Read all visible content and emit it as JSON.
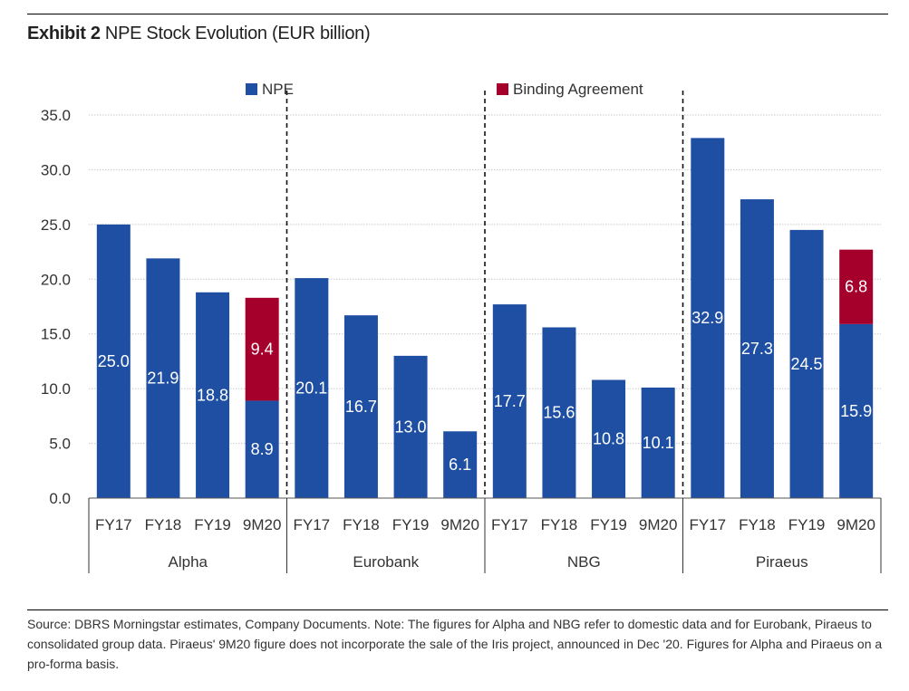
{
  "title": {
    "bold": "Exhibit 2",
    "rest": "NPE Stock Evolution (EUR billion)"
  },
  "chart_data": {
    "type": "bar",
    "stacked": true,
    "title": "Exhibit 2 NPE Stock Evolution (EUR billion)",
    "xlabel": "",
    "ylabel": "",
    "ylim": [
      0,
      35
    ],
    "yticks": [
      "0.0",
      "5.0",
      "10.0",
      "15.0",
      "20.0",
      "25.0",
      "30.0",
      "35.0"
    ],
    "grid": true,
    "legend_position": "top",
    "groups": [
      {
        "name": "Alpha",
        "categories": [
          "FY17",
          "FY18",
          "FY19",
          "9M20"
        ]
      },
      {
        "name": "Eurobank",
        "categories": [
          "FY17",
          "FY18",
          "FY19",
          "9M20"
        ]
      },
      {
        "name": "NBG",
        "categories": [
          "FY17",
          "FY18",
          "FY19",
          "9M20"
        ]
      },
      {
        "name": "Piraeus",
        "categories": [
          "FY17",
          "FY18",
          "FY19",
          "9M20"
        ]
      }
    ],
    "series": [
      {
        "name": "NPE",
        "color": "#1f4fa3",
        "values": [
          25.0,
          21.9,
          18.8,
          8.9,
          20.1,
          16.7,
          13.0,
          6.1,
          17.7,
          15.6,
          10.8,
          10.1,
          32.9,
          27.3,
          24.5,
          15.9
        ],
        "labels": [
          "25.0",
          "21.9",
          "18.8",
          "8.9",
          "20.1",
          "16.7",
          "13.0",
          "6.1",
          "17.7",
          "15.6",
          "10.8",
          "10.1",
          "32.9",
          "27.3",
          "24.5",
          "15.9"
        ]
      },
      {
        "name": "Binding Agreement",
        "color": "#a5002b",
        "values": [
          0,
          0,
          0,
          9.4,
          0,
          0,
          0,
          0,
          0,
          0,
          0,
          0,
          0,
          0,
          0,
          6.8
        ],
        "labels": [
          "",
          "",
          "",
          "9.4",
          "",
          "",
          "",
          "",
          "",
          "",
          "",
          "",
          "",
          "",
          "",
          "6.8"
        ]
      }
    ]
  },
  "source_note": "Source: DBRS Morningstar estimates, Company Documents. Note: The figures for Alpha and NBG refer to domestic data and for Eurobank, Piraeus to consolidated group data. Piraeus' 9M20 figure does not incorporate the sale of the Iris project, announced in Dec '20. Figures for Alpha and Piraeus on a pro-forma basis."
}
